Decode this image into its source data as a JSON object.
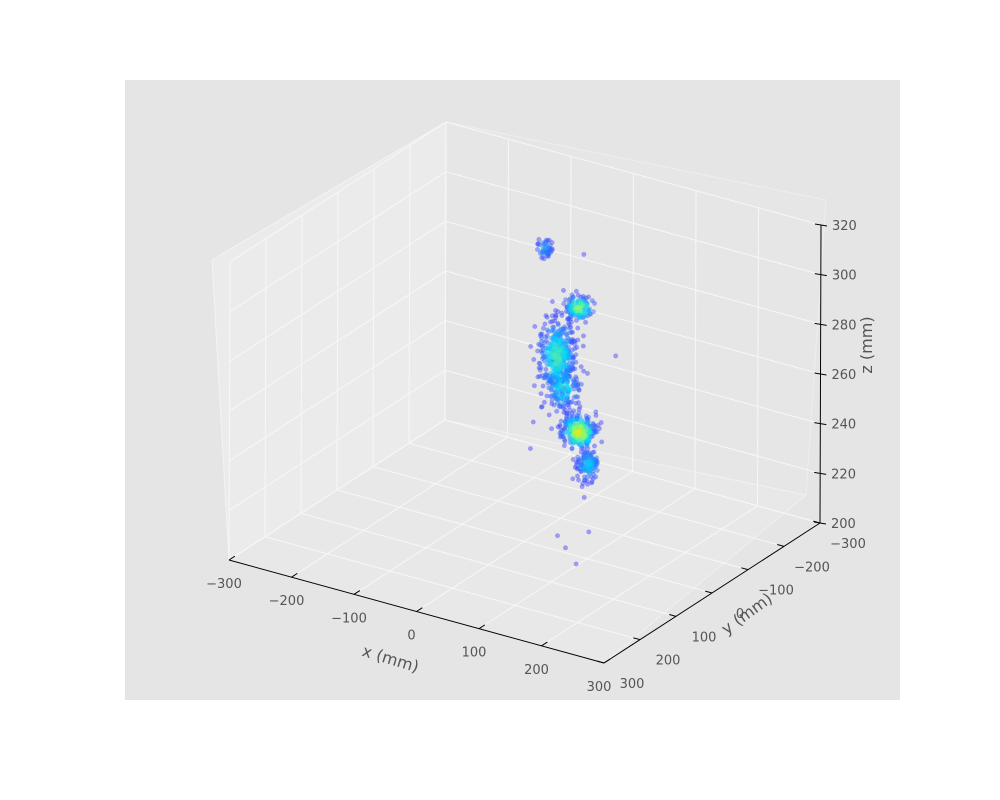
{
  "chart_data": {
    "type": "scatter",
    "projection": "3d",
    "xlabel": "x (mm)",
    "ylabel": "y (mm)",
    "zlabel": "z (mm)",
    "xlim": [
      -300,
      300
    ],
    "ylim": [
      -300,
      300
    ],
    "zlim": [
      200,
      320
    ],
    "x_ticks": [
      "−300",
      "−200",
      "−100",
      "0",
      "100",
      "200",
      "300"
    ],
    "y_ticks": [
      "−300",
      "−200",
      "−100",
      "0",
      "100",
      "200",
      "300"
    ],
    "z_ticks": [
      "200",
      "220",
      "240",
      "260",
      "280",
      "300",
      "320"
    ],
    "grid": true,
    "colormap": [
      "#3d3dff",
      "#00d5ff",
      "#7dff7d",
      "#ffe600"
    ],
    "background": "#e5e5e5",
    "pane_color": "#eaeaea",
    "clusters": [
      {
        "x": -55,
        "y": -150,
        "z": 300,
        "spread": [
          6,
          6,
          1.8
        ],
        "n": 45,
        "peak": 0.25
      },
      {
        "x": 0,
        "y": -150,
        "z": 280,
        "spread": [
          10,
          10,
          2.2
        ],
        "n": 140,
        "peak": 0.75
      },
      {
        "x": -35,
        "y": -150,
        "z": 258,
        "spread": [
          12,
          14,
          7
        ],
        "n": 420,
        "peak": 0.55
      },
      {
        "x": -25,
        "y": -150,
        "z": 246,
        "spread": [
          12,
          12,
          4
        ],
        "n": 160,
        "peak": 0.45
      },
      {
        "x": 0,
        "y": -150,
        "z": 230,
        "spread": [
          12,
          10,
          3.2
        ],
        "n": 300,
        "peak": 0.95
      },
      {
        "x": 15,
        "y": -150,
        "z": 218,
        "spread": [
          8,
          8,
          3
        ],
        "n": 120,
        "peak": 0.35
      }
    ],
    "outliers": [
      {
        "x": 120,
        "y": 60,
        "z": 305
      },
      {
        "x": 60,
        "y": -40,
        "z": 250
      },
      {
        "x": 65,
        "y": -40,
        "z": 255
      },
      {
        "x": 140,
        "y": 100,
        "z": 210
      },
      {
        "x": 55,
        "y": -70,
        "z": 215
      },
      {
        "x": 70,
        "y": 30,
        "z": 210
      },
      {
        "x": 120,
        "y": 30,
        "z": 215
      },
      {
        "x": 100,
        "y": 60,
        "z": 210
      },
      {
        "x": 40,
        "y": -80,
        "z": 220
      },
      {
        "x": 20,
        "y": -100,
        "z": 225
      },
      {
        "x": 40,
        "y": -120,
        "z": 235
      },
      {
        "x": 15,
        "y": -120,
        "z": 240
      },
      {
        "x": 30,
        "y": -200,
        "z": 258
      },
      {
        "x": -90,
        "y": -180,
        "z": 225
      },
      {
        "x": -10,
        "y": -180,
        "z": 298
      },
      {
        "x": 20,
        "y": -150,
        "z": 222
      },
      {
        "x": -60,
        "y": -120,
        "z": 222
      }
    ]
  }
}
